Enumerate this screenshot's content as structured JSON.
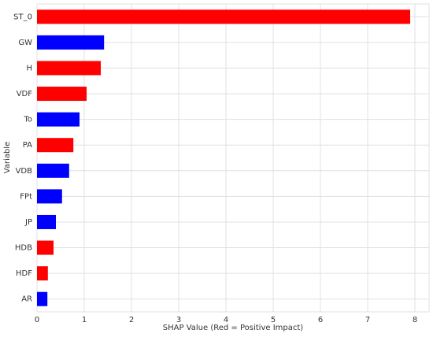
{
  "chart_data": {
    "type": "barh",
    "x_label": "SHAP Value (Red = Positive Impact)",
    "y_label": "Variable",
    "categories": [
      "ST_0",
      "GW",
      "H",
      "VDF",
      "To",
      "PA",
      "VDB",
      "FPt",
      "JP",
      "HDB",
      "HDF",
      "AR"
    ],
    "values": [
      7.9,
      1.42,
      1.35,
      1.05,
      0.9,
      0.77,
      0.68,
      0.53,
      0.4,
      0.35,
      0.23,
      0.22
    ],
    "colors": [
      "#ff0000",
      "#0000ff",
      "#ff0000",
      "#ff0000",
      "#0000ff",
      "#ff0000",
      "#0000ff",
      "#0000ff",
      "#0000ff",
      "#ff0000",
      "#ff0000",
      "#0000ff"
    ],
    "xlim": [
      0,
      8.3
    ],
    "xticks": [
      0,
      1,
      2,
      3,
      4,
      5,
      6,
      7,
      8
    ],
    "grid": true
  }
}
